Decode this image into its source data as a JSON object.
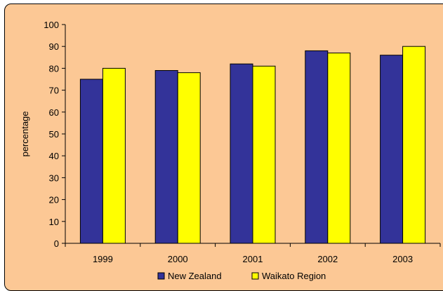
{
  "chart_data": {
    "type": "bar",
    "title": "",
    "xlabel": "",
    "ylabel": "percentage",
    "ylim": [
      0,
      100
    ],
    "yticks": [
      0,
      10,
      20,
      30,
      40,
      50,
      60,
      70,
      80,
      90,
      100
    ],
    "categories": [
      "1999",
      "2000",
      "2001",
      "2002",
      "2003"
    ],
    "series": [
      {
        "name": "New Zealand",
        "values": [
          75,
          79,
          82,
          88,
          86
        ],
        "color": "#333399"
      },
      {
        "name": "Waikato Region",
        "values": [
          80,
          78,
          81,
          87,
          90
        ],
        "color": "#ffff00"
      }
    ],
    "legend_position": "bottom",
    "grid": false,
    "background_color": "#fcc895"
  }
}
